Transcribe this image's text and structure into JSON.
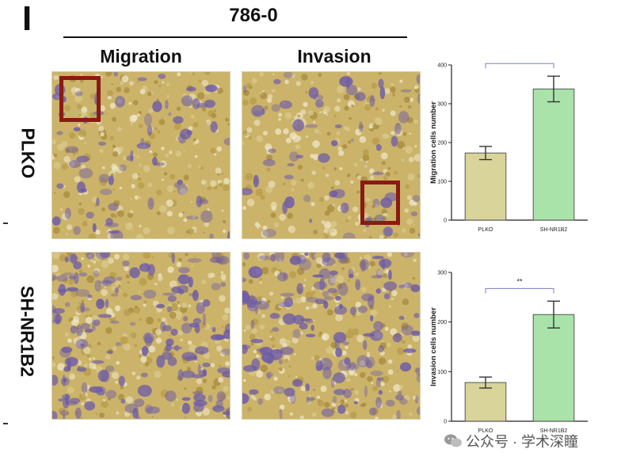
{
  "figure": {
    "panel_letter": "I",
    "cell_line": "786-0",
    "columns": [
      "Migration",
      "Invasion"
    ],
    "rows": [
      "PLKO",
      "SH-NR1B2"
    ],
    "watermark": "公众号 · 学术深瞳"
  },
  "colors": {
    "plko_bar": "#d8d49a",
    "sh_bar": "#a9e3a9",
    "roi_box": "#8a1a14",
    "stain_bg": "#cbb36a",
    "stain_cell": "#6c5aa8",
    "sig_bracket": "#7b7bc4"
  },
  "icons": [
    "wechat-icon"
  ],
  "chart_data": [
    {
      "type": "bar",
      "categories": [
        "PLKO",
        "SH-NR1B2"
      ],
      "values": [
        173,
        338
      ],
      "errors": [
        17,
        33
      ],
      "title": "",
      "xlabel": "",
      "ylabel": "Migration cells number",
      "ylim": [
        0,
        400
      ],
      "yticks": [
        "0",
        "100",
        "200",
        "300",
        "400"
      ],
      "significance": "**",
      "grid": false
    },
    {
      "type": "bar",
      "categories": [
        "PLKO",
        "SH-NR1B2"
      ],
      "values": [
        78,
        215
      ],
      "errors": [
        11,
        27
      ],
      "title": "",
      "xlabel": "",
      "ylabel": "Invasion cells number",
      "ylim": [
        0,
        300
      ],
      "yticks": [
        "0",
        "100",
        "200",
        "300"
      ],
      "significance": "**",
      "grid": false
    }
  ]
}
